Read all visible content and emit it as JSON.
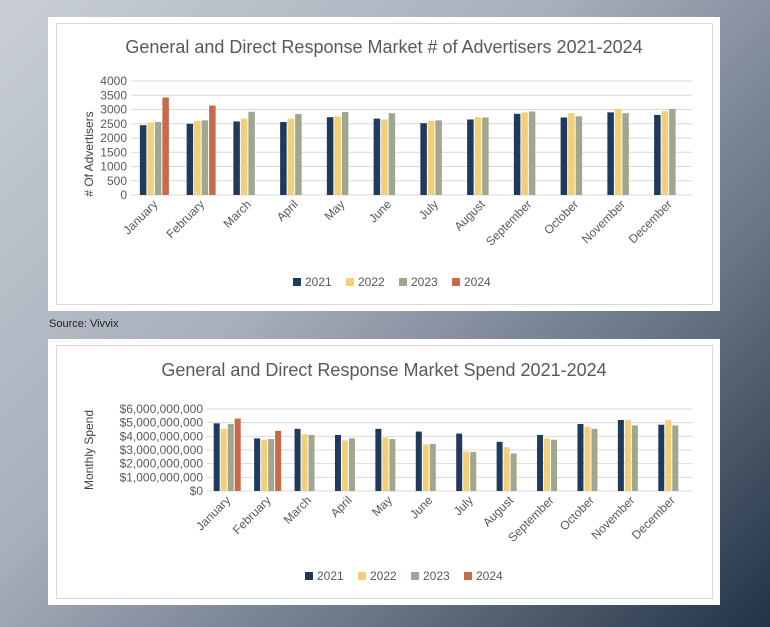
{
  "colors": {
    "s2021": "#1f3a5c",
    "s2022": "#f2d07a",
    "s2023": "#a0a78e",
    "s2024": "#c8694a",
    "grid": "#d9d9d9",
    "axis_text": "#595959",
    "title_text": "#595959"
  },
  "source": "Source: Vivvix",
  "chart_data": [
    {
      "type": "bar",
      "title": "General and Direct Response Market # of Advertisers 2021-2024",
      "xlabel": "",
      "ylabel": "# Of Advertisers",
      "ylim": [
        0,
        4000
      ],
      "yticks": [
        "0",
        "500",
        "1000",
        "1500",
        "2000",
        "2500",
        "3000",
        "3500",
        "4000"
      ],
      "grid": true,
      "legend": "bottom",
      "categories": [
        "January",
        "February",
        "March",
        "April",
        "May",
        "June",
        "July",
        "August",
        "September",
        "October",
        "November",
        "December"
      ],
      "series": [
        {
          "name": "2021",
          "values": [
            2450,
            2500,
            2580,
            2560,
            2730,
            2680,
            2520,
            2650,
            2850,
            2720,
            2900,
            2810
          ]
        },
        {
          "name": "2022",
          "values": [
            2540,
            2600,
            2680,
            2680,
            2760,
            2650,
            2600,
            2730,
            2900,
            2870,
            3020,
            2940
          ]
        },
        {
          "name": "2023",
          "values": [
            2560,
            2620,
            2920,
            2840,
            2910,
            2870,
            2620,
            2720,
            2930,
            2760,
            2870,
            3020
          ]
        },
        {
          "name": "2024",
          "values": [
            3420,
            3140,
            null,
            null,
            null,
            null,
            null,
            null,
            null,
            null,
            null,
            null
          ]
        }
      ]
    },
    {
      "type": "bar",
      "title": "General and Direct Response Market Spend 2021-2024",
      "xlabel": "",
      "ylabel": "Monthly Spend",
      "ylim": [
        0,
        6000000000
      ],
      "yticks": [
        "$0",
        "$1,000,000,000",
        "$2,000,000,000",
        "$3,000,000,000",
        "$4,000,000,000",
        "$5,000,000,000",
        "$6,000,000,000"
      ],
      "grid": true,
      "legend": "bottom",
      "categories": [
        "January",
        "February",
        "March",
        "April",
        "May",
        "June",
        "July",
        "August",
        "September",
        "October",
        "November",
        "December"
      ],
      "series": [
        {
          "name": "2021",
          "values": [
            4950000000,
            3850000000,
            4550000000,
            4100000000,
            4550000000,
            4350000000,
            4200000000,
            3600000000,
            4100000000,
            4900000000,
            5200000000,
            4850000000
          ]
        },
        {
          "name": "2022",
          "values": [
            4550000000,
            3750000000,
            4150000000,
            3700000000,
            3900000000,
            3400000000,
            2900000000,
            3200000000,
            3850000000,
            4700000000,
            5200000000,
            5200000000
          ]
        },
        {
          "name": "2023",
          "values": [
            4900000000,
            3800000000,
            4100000000,
            3850000000,
            3800000000,
            3450000000,
            2850000000,
            2750000000,
            3750000000,
            4550000000,
            4800000000,
            4800000000
          ]
        },
        {
          "name": "2024",
          "values": [
            5300000000,
            4400000000,
            null,
            null,
            null,
            null,
            null,
            null,
            null,
            null,
            null,
            null
          ]
        }
      ]
    }
  ]
}
